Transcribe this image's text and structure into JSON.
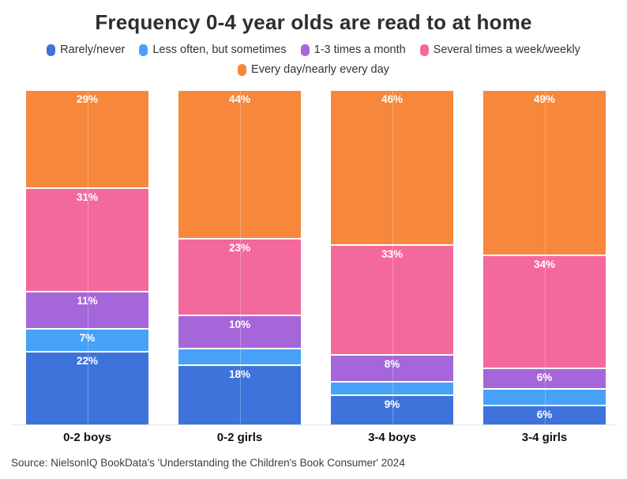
{
  "chart_data": {
    "type": "bar",
    "subtype": "stacked-percentage-column",
    "title": "Frequency 0-4 year olds are read to at home",
    "categories": [
      "0-2 boys",
      "0-2 girls",
      "3-4 boys",
      "3-4 girls"
    ],
    "series": [
      {
        "name": "Rarely/never",
        "color": "#3e73db",
        "values": [
          22,
          18,
          9,
          6
        ],
        "labels": [
          "22%",
          "18%",
          "9%",
          "6%"
        ]
      },
      {
        "name": "Less often, but sometimes",
        "color": "#47a2f7",
        "values": [
          7,
          5,
          4,
          5
        ],
        "labels": [
          "7%",
          "",
          "",
          ""
        ]
      },
      {
        "name": "1-3 times a month",
        "color": "#a566d9",
        "values": [
          11,
          10,
          8,
          6
        ],
        "labels": [
          "11%",
          "10%",
          "8%",
          "6%"
        ]
      },
      {
        "name": "Several times a week/weekly",
        "color": "#f4699c",
        "values": [
          31,
          23,
          33,
          34
        ],
        "labels": [
          "31%",
          "23%",
          "33%",
          "34%"
        ]
      },
      {
        "name": "Every day/nearly every day",
        "color": "#f7873b",
        "values": [
          29,
          44,
          46,
          49
        ],
        "labels": [
          "29%",
          "44%",
          "46%",
          "49%"
        ]
      }
    ],
    "stack_order": "first series at bottom of each column",
    "ylim": [
      0,
      100
    ],
    "value_suffix": "%",
    "legend_position": "top",
    "grid": "off",
    "source": "Source: NielsonIQ BookData's 'Understanding the Children's Book Consumer' 2024"
  },
  "colors": {
    "background": "#ffffff",
    "title_text": "#2e2e2e",
    "legend_text": "#333333",
    "value_label_text": "#ffffff",
    "category_label_text": "#111111",
    "source_text": "#3d3d3d",
    "axis_line": "#e4e4e4",
    "segment_separator": "#ffffff"
  }
}
